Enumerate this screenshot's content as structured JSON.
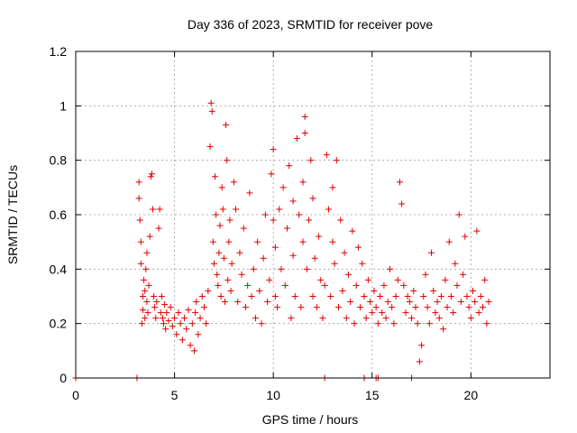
{
  "chart_data": {
    "type": "scatter",
    "title": "Day 336 of 2023, SRMTID for receiver pove",
    "xlabel": "GPS time / hours",
    "ylabel": "SRMTID / TECUs",
    "xlim": [
      0,
      24
    ],
    "ylim": [
      0,
      1.2
    ],
    "xticks": [
      0,
      5,
      10,
      15,
      20
    ],
    "yticks": [
      0,
      0.2,
      0.4,
      0.6,
      0.8,
      1,
      1.2
    ],
    "xtick_labels": [
      "0",
      "5",
      "10",
      "15",
      "20"
    ],
    "ytick_labels": [
      "0",
      "0.2",
      "0.4",
      "0.6",
      "0.8",
      "1",
      "1.2"
    ],
    "grid": true,
    "marker": "+",
    "color": "#e00000",
    "series": [
      {
        "name": "SRMTID",
        "x": [
          3.2,
          3.2,
          3.25,
          3.3,
          3.3,
          3.35,
          3.4,
          3.4,
          3.45,
          3.5,
          3.5,
          3.55,
          3.6,
          3.6,
          3.65,
          3.7,
          3.75,
          3.8,
          3.85,
          3.9,
          3.95,
          4.0,
          4.05,
          4.1,
          4.2,
          4.25,
          4.3,
          4.35,
          4.4,
          4.45,
          4.5,
          4.55,
          4.6,
          4.7,
          4.8,
          4.9,
          5.0,
          5.1,
          5.2,
          5.3,
          5.4,
          5.5,
          5.6,
          5.7,
          5.8,
          5.9,
          6.0,
          6.05,
          6.1,
          6.2,
          6.3,
          6.4,
          6.5,
          6.6,
          6.7,
          6.8,
          6.85,
          6.9,
          6.95,
          7.0,
          7.05,
          7.1,
          7.15,
          7.2,
          7.25,
          7.3,
          7.35,
          7.4,
          7.45,
          7.5,
          7.55,
          7.6,
          7.65,
          7.7,
          7.75,
          7.8,
          7.85,
          7.9,
          8.0,
          8.1,
          8.2,
          8.3,
          8.4,
          8.5,
          8.6,
          8.7,
          8.8,
          8.9,
          9.0,
          9.1,
          9.2,
          9.3,
          9.4,
          9.5,
          9.6,
          9.7,
          9.8,
          9.9,
          10.0,
          10.0,
          10.1,
          10.1,
          10.2,
          10.3,
          10.4,
          10.5,
          10.6,
          10.7,
          10.8,
          10.9,
          11.0,
          11.0,
          11.1,
          11.2,
          11.3,
          11.4,
          11.5,
          11.5,
          11.6,
          11.6,
          11.7,
          11.8,
          11.9,
          12.0,
          12.0,
          12.1,
          12.2,
          12.3,
          12.4,
          12.5,
          12.6,
          12.7,
          12.8,
          12.9,
          13.0,
          13.0,
          13.1,
          13.2,
          13.3,
          13.4,
          13.5,
          13.6,
          13.7,
          13.8,
          13.9,
          14.0,
          14.1,
          14.2,
          14.3,
          14.4,
          14.5,
          14.6,
          14.7,
          14.8,
          14.9,
          15.0,
          15.1,
          15.2,
          15.3,
          15.4,
          15.5,
          15.6,
          15.7,
          15.8,
          15.9,
          16.0,
          16.1,
          16.2,
          16.3,
          16.4,
          16.5,
          16.6,
          16.7,
          16.8,
          16.9,
          17.0,
          17.1,
          17.2,
          17.3,
          17.4,
          17.5,
          17.6,
          17.7,
          17.8,
          17.9,
          18.0,
          18.1,
          18.2,
          18.3,
          18.4,
          18.5,
          18.6,
          18.7,
          18.8,
          18.9,
          19.0,
          19.1,
          19.2,
          19.3,
          19.4,
          19.5,
          19.6,
          19.7,
          19.8,
          19.9,
          20.0,
          20.1,
          20.2,
          20.3,
          20.4,
          20.5,
          20.6,
          20.7,
          20.8,
          20.9
        ],
        "y": [
          0.72,
          0.66,
          0.58,
          0.5,
          0.42,
          0.2,
          0.3,
          0.25,
          0.36,
          0.22,
          0.32,
          0.4,
          0.28,
          0.46,
          0.24,
          0.34,
          0.52,
          0.74,
          0.75,
          0.62,
          0.3,
          0.26,
          0.22,
          0.28,
          0.55,
          0.62,
          0.24,
          0.3,
          0.22,
          0.2,
          0.27,
          0.18,
          0.24,
          0.21,
          0.26,
          0.19,
          0.22,
          0.16,
          0.24,
          0.2,
          0.14,
          0.22,
          0.18,
          0.25,
          0.12,
          0.2,
          0.1,
          0.24,
          0.28,
          0.16,
          0.22,
          0.3,
          0.26,
          0.2,
          0.32,
          0.85,
          1.01,
          0.98,
          0.5,
          0.42,
          0.74,
          0.6,
          0.38,
          0.34,
          0.46,
          0.56,
          0.3,
          0.7,
          0.62,
          0.44,
          0.28,
          0.93,
          0.8,
          0.36,
          0.5,
          0.58,
          0.32,
          0.42,
          0.72,
          0.62,
          0.28,
          0.46,
          0.38,
          0.55,
          0.26,
          0.34,
          0.68,
          0.3,
          0.4,
          0.22,
          0.5,
          0.32,
          0.2,
          0.44,
          0.6,
          0.28,
          0.36,
          0.75,
          0.84,
          0.58,
          0.3,
          0.48,
          0.26,
          0.62,
          0.4,
          0.7,
          0.34,
          0.55,
          0.78,
          0.22,
          0.45,
          0.65,
          0.3,
          0.88,
          0.6,
          0.26,
          0.5,
          0.72,
          0.96,
          0.9,
          0.4,
          0.58,
          0.8,
          0.3,
          0.66,
          0.44,
          0.26,
          0.52,
          0.36,
          0.22,
          0.34,
          0.82,
          0.62,
          0.3,
          0.5,
          0.7,
          0.42,
          0.8,
          0.26,
          0.58,
          0.32,
          0.46,
          0.22,
          0.38,
          0.28,
          0.54,
          0.2,
          0.34,
          0.48,
          0.26,
          0.42,
          0.3,
          0.22,
          0.36,
          0.28,
          0.24,
          0.32,
          0.26,
          0.2,
          0.3,
          0.24,
          0.34,
          0.22,
          0.28,
          0.4,
          0.26,
          0.2,
          0.3,
          0.36,
          0.72,
          0.64,
          0.34,
          0.24,
          0.3,
          0.28,
          0.22,
          0.32,
          0.26,
          0.2,
          0.06,
          0.12,
          0.3,
          0.38,
          0.26,
          0.2,
          0.46,
          0.32,
          0.24,
          0.28,
          0.22,
          0.3,
          0.18,
          0.36,
          0.26,
          0.5,
          0.3,
          0.24,
          0.42,
          0.34,
          0.6,
          0.28,
          0.38,
          0.52,
          0.3,
          0.26,
          0.22,
          0.32,
          0.28,
          0.54,
          0.24,
          0.3,
          0.26,
          0.36,
          0.2,
          0.28
        ]
      }
    ],
    "outliers_at_zero_x": [
      0,
      3.1,
      12.6,
      14.6,
      15.2,
      15.3,
      17.0
    ]
  }
}
